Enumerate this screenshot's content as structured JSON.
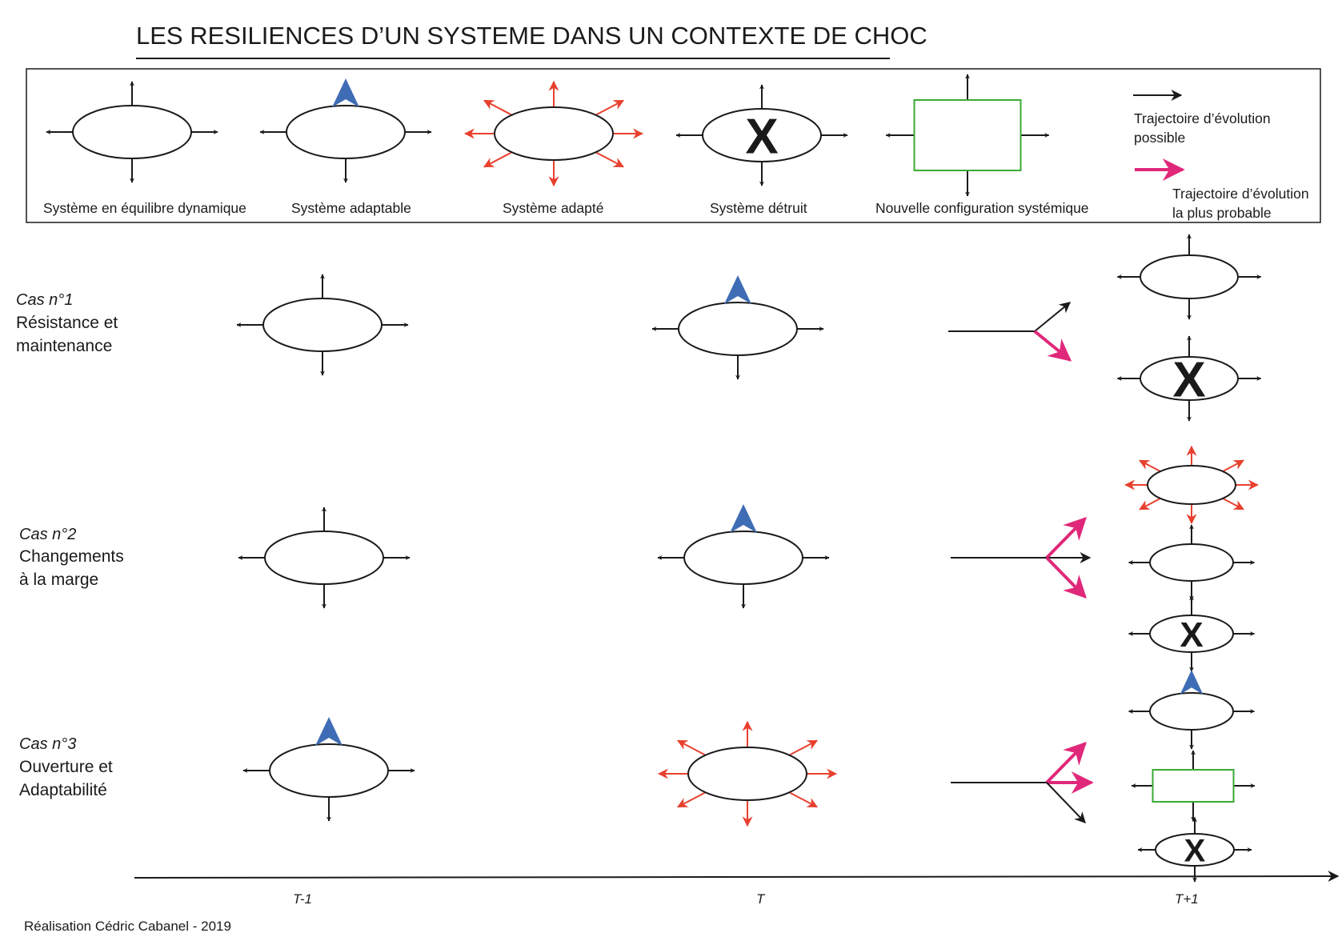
{
  "title": "LES RESILIENCES D’UN SYSTEME DANS UN CONTEXTE DE CHOC",
  "colors": {
    "ink": "#1a1a1a",
    "red": "#e8402f",
    "blue": "#3e6db5",
    "pink": "#e0287a",
    "green": "#3aaa35"
  },
  "legend": {
    "items": [
      {
        "label": "Système en équilibre dynamique",
        "icon": "system-equilibrium-icon"
      },
      {
        "label": "Système adaptable",
        "icon": "system-adaptable-icon"
      },
      {
        "label": "Système adapté",
        "icon": "system-adapted-icon"
      },
      {
        "label": "Système détruit",
        "icon": "system-destroyed-icon"
      },
      {
        "label": "Nouvelle configuration systémique",
        "icon": "new-configuration-icon"
      }
    ],
    "possible_line1": "Trajectoire d’évolution",
    "possible_line2": "possible",
    "probable_line1": "Trajectoire d’évolution",
    "probable_line2": "la plus probable",
    "destroyed_mark": "X"
  },
  "cases": [
    {
      "number": "Cas n°1",
      "line1": "Résistance et",
      "line2": "maintenance"
    },
    {
      "number": "Cas n°2",
      "line1": "Changements",
      "line2": "à la marge"
    },
    {
      "number": "Cas n°3",
      "line1": "Ouverture et",
      "line2": "Adaptabilité"
    }
  ],
  "timeline": {
    "t_minus": "T-1",
    "t": "T",
    "t_plus": "T+1"
  },
  "credit": "Réalisation Cédric Cabanel - 2019"
}
